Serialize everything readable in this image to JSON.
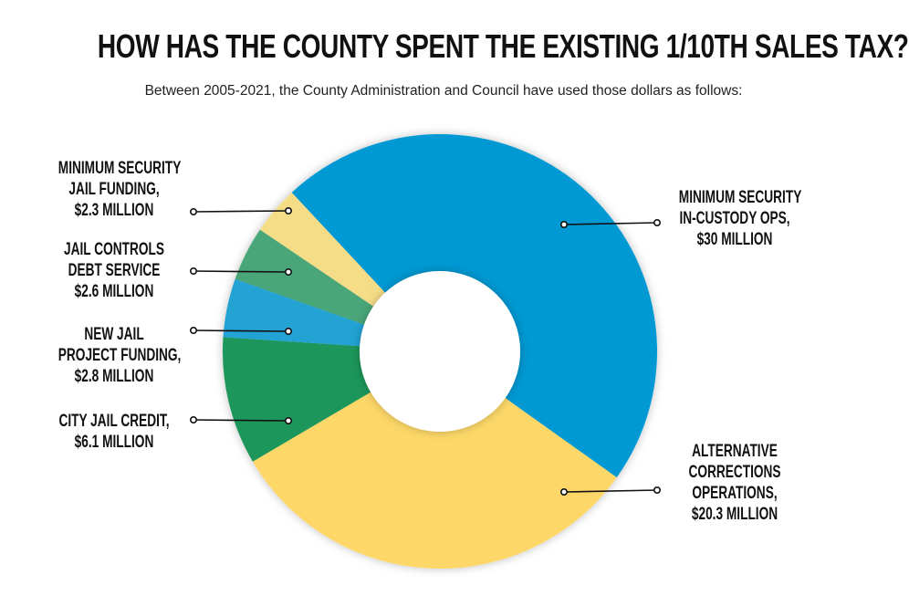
{
  "chart_data": {
    "type": "pie",
    "style": "donut",
    "title": "HOW HAS THE COUNTY SPENT THE EXISTING 1/10TH SALES TAX?",
    "subtitle": "Between 2005-2021, the County Administration and Council have used those dollars as follows:",
    "unit": "million USD",
    "slices": [
      {
        "label": [
          "MINIMUM SECURITY",
          "IN-CUSTODY OPS,",
          "$30 MILLION"
        ],
        "value": 30,
        "color": "#0099d3"
      },
      {
        "label": [
          "ALTERNATIVE",
          "CORRECTIONS",
          "OPERATIONS,",
          "$20.3 MILLION"
        ],
        "value": 20.3,
        "color": "#fdd868"
      },
      {
        "label": [
          "CITY JAIL CREDIT,",
          "$6.1 MILLION"
        ],
        "value": 6.1,
        "color": "#1f965a"
      },
      {
        "label": [
          "NEW JAIL",
          "PROJECT FUNDING,",
          "$2.8 MILLION"
        ],
        "value": 2.8,
        "color": "#24a3d4"
      },
      {
        "label": [
          "JAIL CONTROLS",
          "DEBT SERVICE",
          "$2.6 MILLION"
        ],
        "value": 2.6,
        "color": "#4aa679"
      },
      {
        "label": [
          "MINIMUM SECURITY",
          "JAIL FUNDING,",
          "$2.3 MILLION"
        ],
        "value": 2.3,
        "color": "#f5dc87"
      }
    ]
  }
}
